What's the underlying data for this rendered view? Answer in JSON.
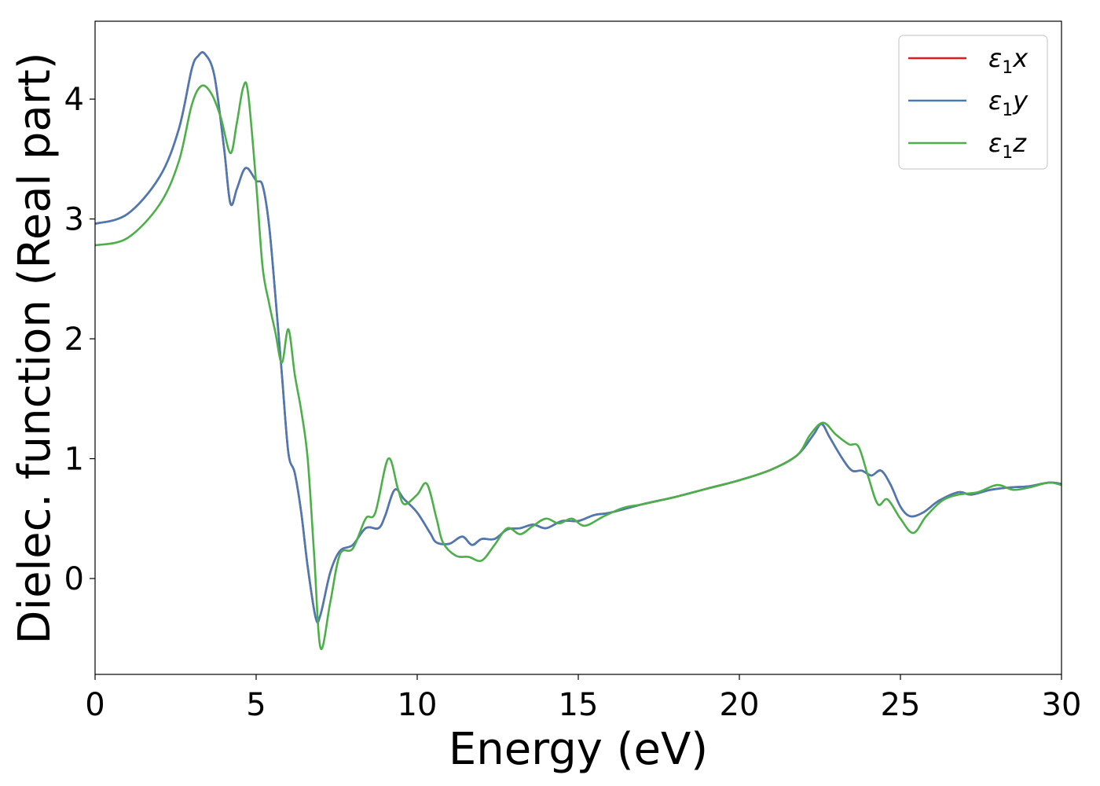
{
  "chart_data": {
    "type": "line",
    "title": "",
    "xlabel": "Energy (eV)",
    "ylabel": "Dielec. function (Real part)",
    "xlim": [
      0,
      30
    ],
    "ylim": [
      -0.8,
      4.65
    ],
    "xticks": [
      0,
      5,
      10,
      15,
      20,
      25,
      30
    ],
    "yticks": [
      0,
      1,
      2,
      3,
      4
    ],
    "grid": false,
    "legend_position": "top-right",
    "series": [
      {
        "name": "ε1x",
        "legend_symbol": "ε",
        "legend_sub": "1",
        "legend_suffix": "x",
        "color": "#e41a1c",
        "points": [
          [
            0,
            2.96
          ],
          [
            1,
            3.04
          ],
          [
            2,
            3.35
          ],
          [
            2.6,
            3.75
          ],
          [
            3.0,
            4.25
          ],
          [
            3.2,
            4.36
          ],
          [
            3.4,
            4.38
          ],
          [
            3.7,
            4.2
          ],
          [
            4.0,
            3.6
          ],
          [
            4.2,
            3.13
          ],
          [
            4.4,
            3.25
          ],
          [
            4.6,
            3.4
          ],
          [
            4.75,
            3.42
          ],
          [
            5.0,
            3.32
          ],
          [
            5.2,
            3.28
          ],
          [
            5.4,
            2.95
          ],
          [
            5.6,
            2.35
          ],
          [
            5.8,
            1.7
          ],
          [
            6.0,
            1.05
          ],
          [
            6.2,
            0.88
          ],
          [
            6.4,
            0.55
          ],
          [
            6.6,
            0.1
          ],
          [
            6.85,
            -0.33
          ],
          [
            7.0,
            -0.3
          ],
          [
            7.3,
            0.05
          ],
          [
            7.6,
            0.23
          ],
          [
            8.0,
            0.28
          ],
          [
            8.4,
            0.42
          ],
          [
            8.8,
            0.42
          ],
          [
            9.0,
            0.52
          ],
          [
            9.3,
            0.74
          ],
          [
            9.6,
            0.66
          ],
          [
            10.0,
            0.55
          ],
          [
            10.4,
            0.38
          ],
          [
            10.6,
            0.3
          ],
          [
            11.0,
            0.29
          ],
          [
            11.4,
            0.35
          ],
          [
            11.7,
            0.28
          ],
          [
            12.0,
            0.33
          ],
          [
            12.4,
            0.33
          ],
          [
            12.8,
            0.41
          ],
          [
            13.2,
            0.42
          ],
          [
            13.6,
            0.45
          ],
          [
            14.0,
            0.42
          ],
          [
            14.5,
            0.48
          ],
          [
            15.0,
            0.48
          ],
          [
            15.5,
            0.53
          ],
          [
            16.0,
            0.55
          ],
          [
            17.0,
            0.62
          ],
          [
            18.0,
            0.68
          ],
          [
            19.0,
            0.75
          ],
          [
            20.0,
            0.82
          ],
          [
            21.0,
            0.91
          ],
          [
            21.8,
            1.03
          ],
          [
            22.3,
            1.2
          ],
          [
            22.55,
            1.29
          ],
          [
            22.8,
            1.18
          ],
          [
            23.2,
            1.0
          ],
          [
            23.5,
            0.9
          ],
          [
            23.8,
            0.9
          ],
          [
            24.1,
            0.86
          ],
          [
            24.4,
            0.9
          ],
          [
            24.7,
            0.78
          ],
          [
            25.0,
            0.6
          ],
          [
            25.3,
            0.52
          ],
          [
            25.7,
            0.55
          ],
          [
            26.2,
            0.65
          ],
          [
            26.8,
            0.72
          ],
          [
            27.2,
            0.7
          ],
          [
            27.8,
            0.74
          ],
          [
            28.4,
            0.76
          ],
          [
            29.0,
            0.77
          ],
          [
            29.6,
            0.8
          ],
          [
            30,
            0.79
          ]
        ]
      },
      {
        "name": "ε1y",
        "legend_symbol": "ε",
        "legend_sub": "1",
        "legend_suffix": "y",
        "color": "#4a7ab5",
        "points": [
          [
            0,
            2.96
          ],
          [
            1,
            3.04
          ],
          [
            2,
            3.35
          ],
          [
            2.6,
            3.75
          ],
          [
            3.0,
            4.25
          ],
          [
            3.2,
            4.36
          ],
          [
            3.4,
            4.38
          ],
          [
            3.7,
            4.2
          ],
          [
            4.0,
            3.6
          ],
          [
            4.2,
            3.13
          ],
          [
            4.4,
            3.25
          ],
          [
            4.6,
            3.4
          ],
          [
            4.75,
            3.42
          ],
          [
            5.0,
            3.32
          ],
          [
            5.2,
            3.28
          ],
          [
            5.4,
            2.95
          ],
          [
            5.6,
            2.35
          ],
          [
            5.8,
            1.7
          ],
          [
            6.0,
            1.05
          ],
          [
            6.2,
            0.88
          ],
          [
            6.4,
            0.55
          ],
          [
            6.6,
            0.1
          ],
          [
            6.85,
            -0.33
          ],
          [
            7.0,
            -0.3
          ],
          [
            7.3,
            0.05
          ],
          [
            7.6,
            0.23
          ],
          [
            8.0,
            0.28
          ],
          [
            8.4,
            0.42
          ],
          [
            8.8,
            0.42
          ],
          [
            9.0,
            0.52
          ],
          [
            9.3,
            0.74
          ],
          [
            9.6,
            0.66
          ],
          [
            10.0,
            0.55
          ],
          [
            10.4,
            0.38
          ],
          [
            10.6,
            0.3
          ],
          [
            11.0,
            0.29
          ],
          [
            11.4,
            0.35
          ],
          [
            11.7,
            0.28
          ],
          [
            12.0,
            0.33
          ],
          [
            12.4,
            0.33
          ],
          [
            12.8,
            0.41
          ],
          [
            13.2,
            0.42
          ],
          [
            13.6,
            0.45
          ],
          [
            14.0,
            0.42
          ],
          [
            14.5,
            0.48
          ],
          [
            15.0,
            0.48
          ],
          [
            15.5,
            0.53
          ],
          [
            16.0,
            0.55
          ],
          [
            17.0,
            0.62
          ],
          [
            18.0,
            0.68
          ],
          [
            19.0,
            0.75
          ],
          [
            20.0,
            0.82
          ],
          [
            21.0,
            0.91
          ],
          [
            21.8,
            1.03
          ],
          [
            22.3,
            1.2
          ],
          [
            22.55,
            1.29
          ],
          [
            22.8,
            1.18
          ],
          [
            23.2,
            1.0
          ],
          [
            23.5,
            0.9
          ],
          [
            23.8,
            0.9
          ],
          [
            24.1,
            0.86
          ],
          [
            24.4,
            0.9
          ],
          [
            24.7,
            0.78
          ],
          [
            25.0,
            0.6
          ],
          [
            25.3,
            0.52
          ],
          [
            25.7,
            0.55
          ],
          [
            26.2,
            0.65
          ],
          [
            26.8,
            0.72
          ],
          [
            27.2,
            0.7
          ],
          [
            27.8,
            0.74
          ],
          [
            28.4,
            0.76
          ],
          [
            29.0,
            0.77
          ],
          [
            29.6,
            0.8
          ],
          [
            30,
            0.79
          ]
        ]
      },
      {
        "name": "ε1z",
        "legend_symbol": "ε",
        "legend_sub": "1",
        "legend_suffix": "z",
        "color": "#4daf4a",
        "points": [
          [
            0,
            2.78
          ],
          [
            1,
            2.84
          ],
          [
            2,
            3.12
          ],
          [
            2.6,
            3.48
          ],
          [
            3.0,
            3.95
          ],
          [
            3.3,
            4.11
          ],
          [
            3.6,
            4.05
          ],
          [
            3.9,
            3.85
          ],
          [
            4.2,
            3.55
          ],
          [
            4.4,
            3.8
          ],
          [
            4.6,
            4.1
          ],
          [
            4.75,
            4.05
          ],
          [
            5.0,
            3.3
          ],
          [
            5.2,
            2.6
          ],
          [
            5.4,
            2.3
          ],
          [
            5.6,
            2.05
          ],
          [
            5.8,
            1.8
          ],
          [
            6.0,
            2.08
          ],
          [
            6.2,
            1.7
          ],
          [
            6.4,
            1.4
          ],
          [
            6.6,
            1.0
          ],
          [
            6.8,
            0.2
          ],
          [
            7.0,
            -0.58
          ],
          [
            7.3,
            -0.2
          ],
          [
            7.6,
            0.2
          ],
          [
            8.0,
            0.25
          ],
          [
            8.4,
            0.5
          ],
          [
            8.7,
            0.55
          ],
          [
            9.1,
            1.0
          ],
          [
            9.4,
            0.75
          ],
          [
            9.6,
            0.62
          ],
          [
            10.0,
            0.7
          ],
          [
            10.3,
            0.79
          ],
          [
            10.6,
            0.5
          ],
          [
            10.8,
            0.3
          ],
          [
            11.2,
            0.19
          ],
          [
            11.6,
            0.18
          ],
          [
            12.0,
            0.15
          ],
          [
            12.4,
            0.28
          ],
          [
            12.8,
            0.42
          ],
          [
            13.2,
            0.37
          ],
          [
            13.6,
            0.44
          ],
          [
            14.0,
            0.5
          ],
          [
            14.4,
            0.46
          ],
          [
            14.8,
            0.5
          ],
          [
            15.2,
            0.44
          ],
          [
            15.8,
            0.52
          ],
          [
            16.4,
            0.59
          ],
          [
            17.0,
            0.62
          ],
          [
            18.0,
            0.68
          ],
          [
            19.0,
            0.75
          ],
          [
            20.0,
            0.82
          ],
          [
            21.0,
            0.91
          ],
          [
            21.8,
            1.03
          ],
          [
            22.2,
            1.2
          ],
          [
            22.6,
            1.3
          ],
          [
            23.0,
            1.2
          ],
          [
            23.4,
            1.12
          ],
          [
            23.7,
            1.1
          ],
          [
            24.0,
            0.85
          ],
          [
            24.3,
            0.62
          ],
          [
            24.6,
            0.66
          ],
          [
            25.0,
            0.5
          ],
          [
            25.4,
            0.38
          ],
          [
            25.8,
            0.52
          ],
          [
            26.3,
            0.65
          ],
          [
            26.8,
            0.7
          ],
          [
            27.4,
            0.72
          ],
          [
            28.0,
            0.78
          ],
          [
            28.5,
            0.74
          ],
          [
            29.0,
            0.76
          ],
          [
            29.6,
            0.8
          ],
          [
            30,
            0.78
          ]
        ]
      }
    ]
  }
}
